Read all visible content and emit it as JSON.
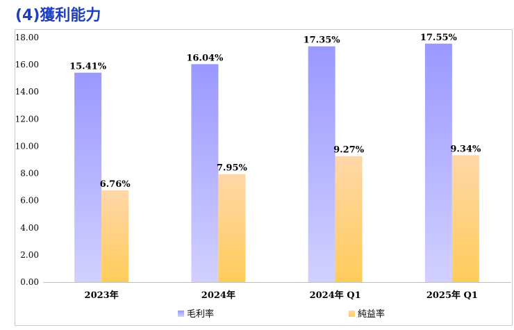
{
  "page": {
    "title": "(4)獲利能力"
  },
  "chart_data": {
    "type": "bar",
    "title": "",
    "xlabel": "",
    "ylabel": "",
    "ylim": [
      0,
      18
    ],
    "yticks": [
      "0.00",
      "2.00",
      "4.00",
      "6.00",
      "8.00",
      "10.00",
      "12.00",
      "14.00",
      "16.00",
      "18.00"
    ],
    "grid": false,
    "legend_position": "bottom",
    "categories": [
      "2023年",
      "2024年",
      "2024年 Q1",
      "2025年 Q1"
    ],
    "series": [
      {
        "name": "毛利率",
        "values": [
          15.41,
          16.04,
          17.35,
          17.55
        ],
        "labels": [
          "15.41%",
          "16.04%",
          "17.35%",
          "17.55%"
        ],
        "color_top": "#9a98ff",
        "color_bottom": "#d2d0ff"
      },
      {
        "name": "純益率",
        "values": [
          6.76,
          7.95,
          9.27,
          9.34
        ],
        "labels": [
          "6.76%",
          "7.95%",
          "9.27%",
          "9.34%"
        ],
        "color_top": "#ffd7a8",
        "color_bottom": "#ffcc5a"
      }
    ]
  }
}
